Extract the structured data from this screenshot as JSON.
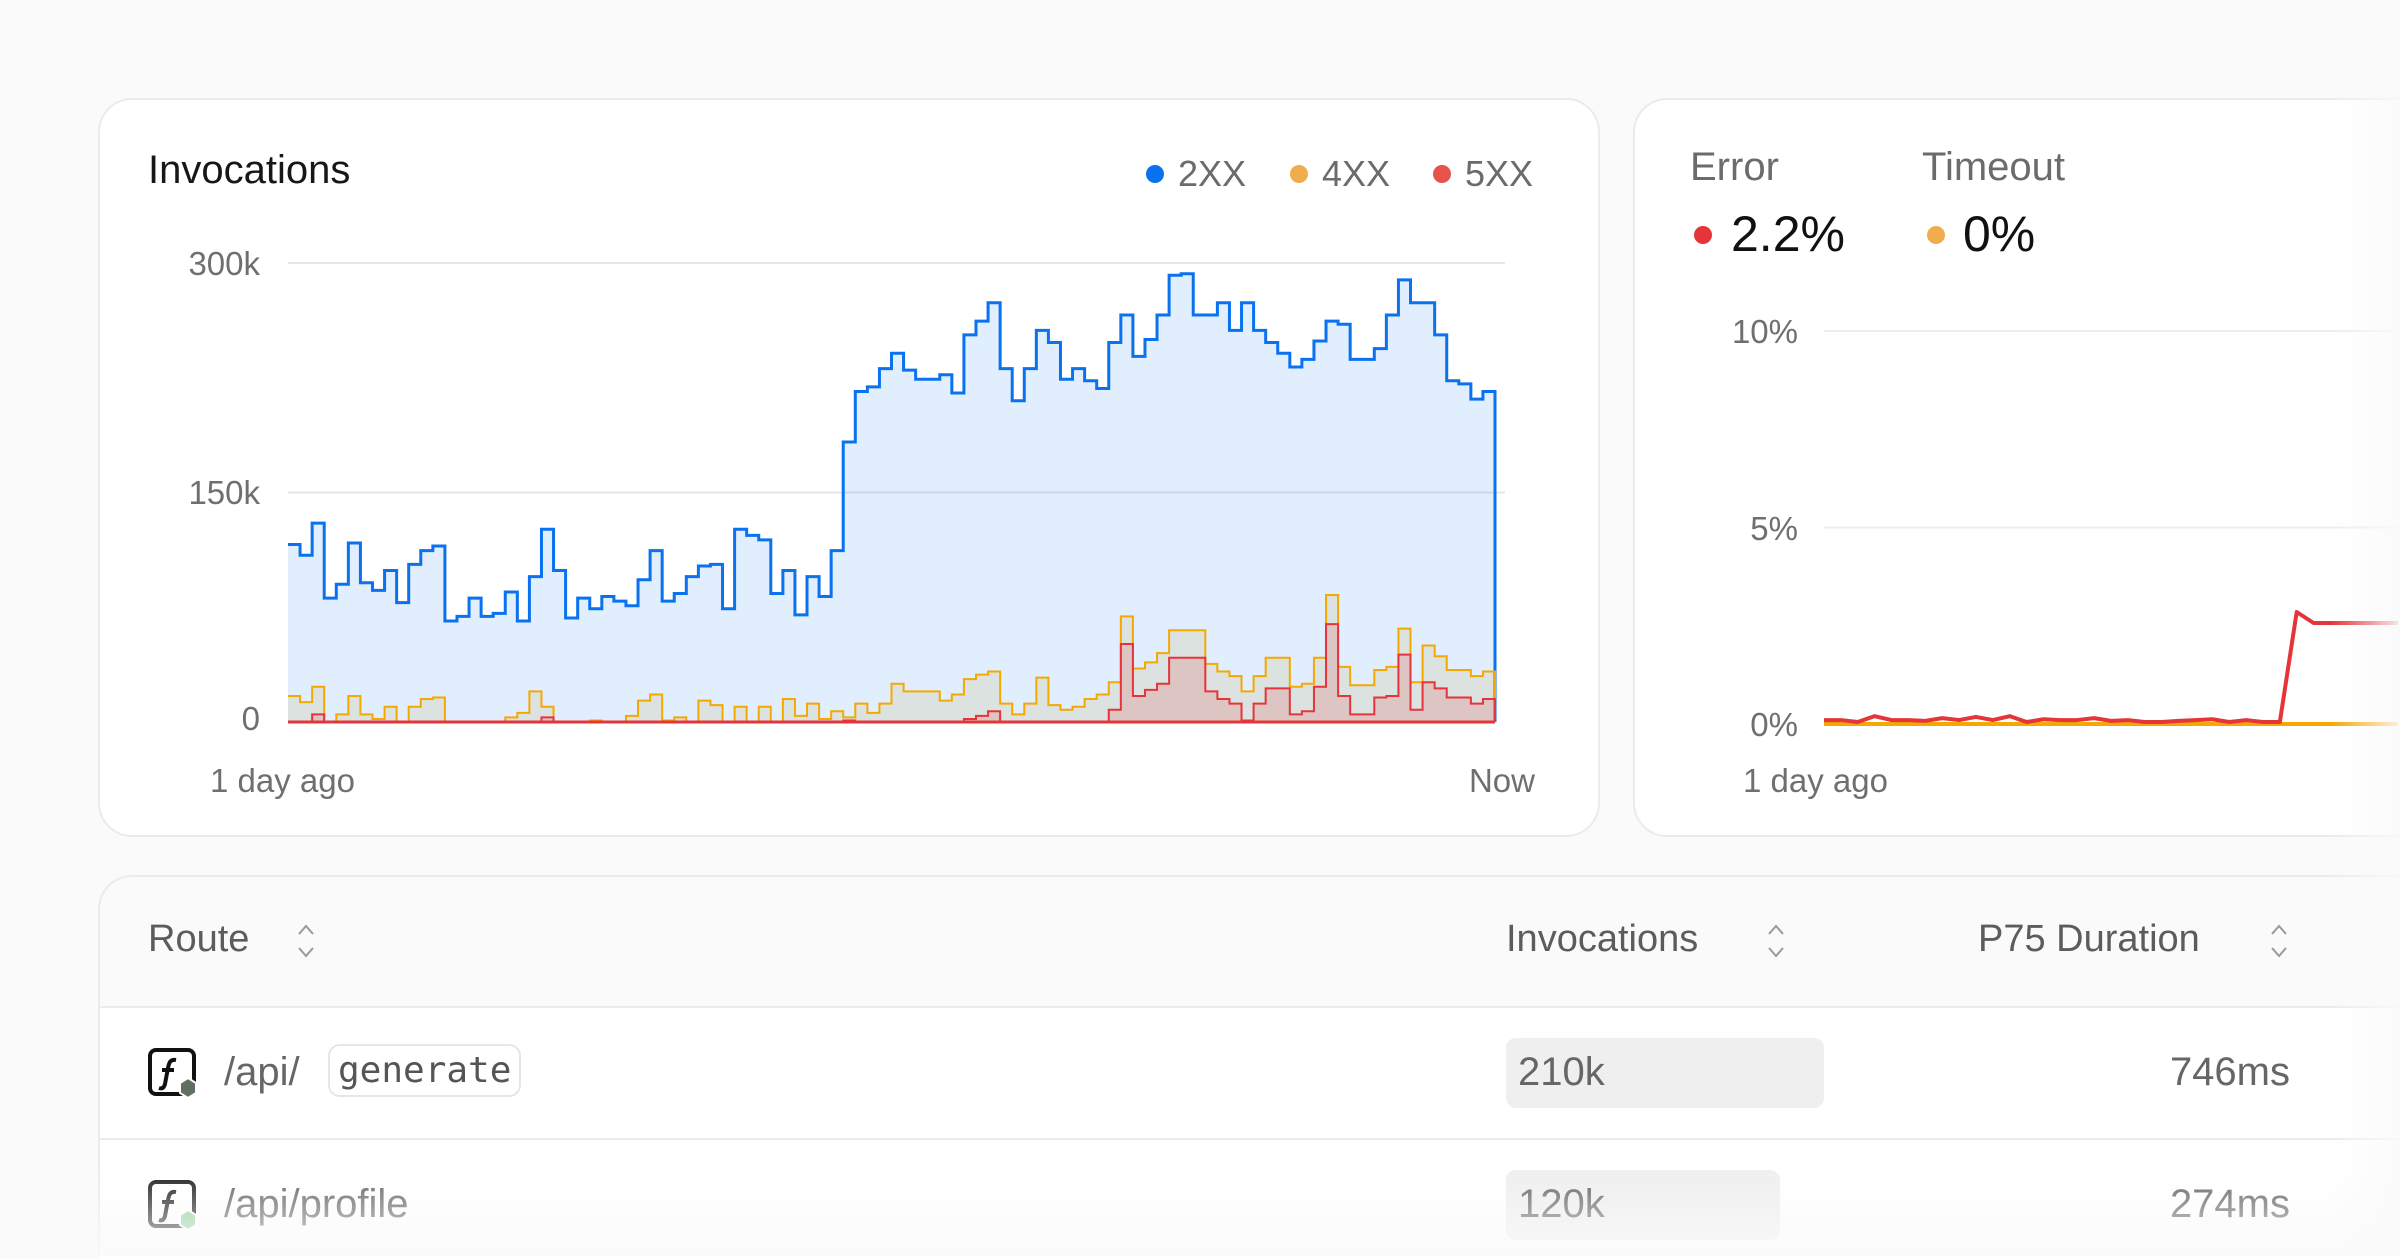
{
  "invocations_card": {
    "title": "Invocations",
    "legend": [
      {
        "label": "2XX",
        "color": "#0a72ef"
      },
      {
        "label": "4XX",
        "color": "#f0ad4e"
      },
      {
        "label": "5XX",
        "color": "#e5534b"
      }
    ],
    "y_ticks": [
      "300k",
      "150k",
      "0"
    ],
    "x_start": "1 day ago",
    "x_end": "Now"
  },
  "error_card": {
    "metrics": [
      {
        "label": "Error",
        "value": "2.2%",
        "color": "#e5343a"
      },
      {
        "label": "Timeout",
        "value": "0%",
        "color": "#f0ad4e"
      }
    ],
    "y_ticks": [
      "10%",
      "5%",
      "0%"
    ],
    "x_start": "1 day ago"
  },
  "chart_data": [
    {
      "type": "area",
      "title": "Invocations",
      "step": true,
      "ylim": [
        0,
        300000
      ],
      "y_ticks": [
        0,
        150000,
        300000
      ],
      "x_range": [
        "1 day ago",
        "Now"
      ],
      "grid": true,
      "legend": "top-right",
      "series": [
        {
          "name": "2XX",
          "color": "#0a72ef",
          "values": [
            116,
            109,
            130,
            81,
            90,
            117,
            91,
            86,
            99,
            78,
            103,
            112,
            115,
            66,
            69,
            81,
            69,
            71,
            85,
            66,
            95,
            126,
            99,
            68,
            81,
            74,
            82,
            79,
            76,
            93,
            112,
            79,
            84,
            95,
            102,
            103,
            74,
            126,
            122,
            119,
            84,
            99,
            70,
            95,
            82,
            112,
            183,
            216,
            219,
            231,
            241,
            230,
            224,
            224,
            227,
            215,
            253,
            262,
            274,
            231,
            210,
            231,
            256,
            248,
            224,
            231,
            223,
            218,
            248,
            266,
            239,
            250,
            266,
            292,
            293,
            266,
            266,
            274,
            256,
            274,
            256,
            248,
            241,
            232,
            237,
            249,
            262,
            260,
            237,
            237,
            244,
            266,
            289,
            274,
            274,
            253,
            223,
            221,
            211,
            216
          ]
        },
        {
          "name": "4XX",
          "color": "#f5a800",
          "values": [
            17,
            13,
            23,
            0,
            5,
            17,
            5,
            2,
            10,
            0,
            10,
            15,
            16,
            0,
            0,
            0,
            0,
            0,
            3,
            6,
            20,
            10,
            0,
            0,
            0,
            1,
            0,
            0,
            4,
            14,
            18,
            1,
            3,
            0,
            14,
            11,
            0,
            10,
            0,
            10,
            0,
            15,
            4,
            12,
            2,
            7,
            3,
            12,
            6,
            12,
            25,
            20,
            20,
            20,
            14,
            18,
            28,
            31,
            33,
            12,
            5,
            12,
            29,
            11,
            8,
            10,
            15,
            18,
            26,
            69,
            35,
            39,
            45,
            60,
            60,
            60,
            38,
            33,
            30,
            20,
            30,
            42,
            42,
            23,
            25,
            42,
            83,
            36,
            24,
            24,
            34,
            36,
            61,
            26,
            50,
            43,
            34,
            34,
            30,
            33
          ]
        },
        {
          "name": "5XX",
          "color": "#e5343a",
          "values": [
            0,
            0,
            5,
            0,
            0,
            0,
            0,
            0,
            0,
            0,
            0,
            0,
            0,
            0,
            0,
            0,
            0,
            0,
            0,
            0,
            0,
            3,
            0,
            0,
            0,
            0,
            0,
            0,
            0,
            0,
            0,
            0,
            0,
            0,
            0,
            0,
            0,
            0,
            0,
            0,
            0,
            0,
            0,
            0,
            0,
            0,
            1,
            0,
            0,
            0,
            0,
            0,
            0,
            0,
            0,
            0,
            2,
            4,
            7,
            0,
            0,
            0,
            0,
            0,
            0,
            0,
            0,
            0,
            8,
            51,
            17,
            21,
            25,
            42,
            42,
            42,
            20,
            15,
            12,
            1,
            12,
            22,
            22,
            5,
            7,
            23,
            64,
            17,
            5,
            5,
            16,
            17,
            44,
            8,
            26,
            22,
            16,
            16,
            12,
            15
          ]
        }
      ],
      "unit": "k"
    },
    {
      "type": "line",
      "ylim": [
        0,
        10
      ],
      "y_ticks": [
        0,
        5,
        10
      ],
      "x_range": [
        "1 day ago",
        ""
      ],
      "grid": true,
      "series": [
        {
          "name": "Error",
          "color": "#e5343a",
          "values": [
            0.1,
            0.1,
            0.05,
            0.2,
            0.1,
            0.1,
            0.08,
            0.15,
            0.1,
            0.18,
            0.1,
            0.2,
            0.05,
            0.12,
            0.1,
            0.1,
            0.15,
            0.08,
            0.1,
            0.05,
            0.05,
            0.08,
            0.1,
            0.12,
            0.05,
            0.1,
            0.05,
            0.05,
            2.85,
            2.57,
            2.57,
            2.57,
            2.57,
            2.57,
            2.57
          ]
        },
        {
          "name": "Timeout",
          "color": "#f5a800",
          "values": [
            0,
            0,
            0,
            0,
            0,
            0,
            0,
            0,
            0,
            0,
            0,
            0,
            0,
            0,
            0,
            0,
            0,
            0,
            0,
            0,
            0,
            0,
            0,
            0,
            0,
            0,
            0,
            0,
            0,
            0,
            0,
            0,
            0,
            0,
            0
          ]
        }
      ]
    }
  ],
  "table": {
    "columns": [
      "Route",
      "Invocations",
      "P75 Duration"
    ],
    "rows": [
      {
        "route_prefix": "/api/",
        "route_param": "generate",
        "invocations": "210k",
        "invocations_fraction": 1.0,
        "p75": "746ms"
      },
      {
        "route_prefix": "/api/profile",
        "route_param": "",
        "invocations": "120k",
        "invocations_fraction": 0.86,
        "p75": "274ms"
      }
    ]
  }
}
